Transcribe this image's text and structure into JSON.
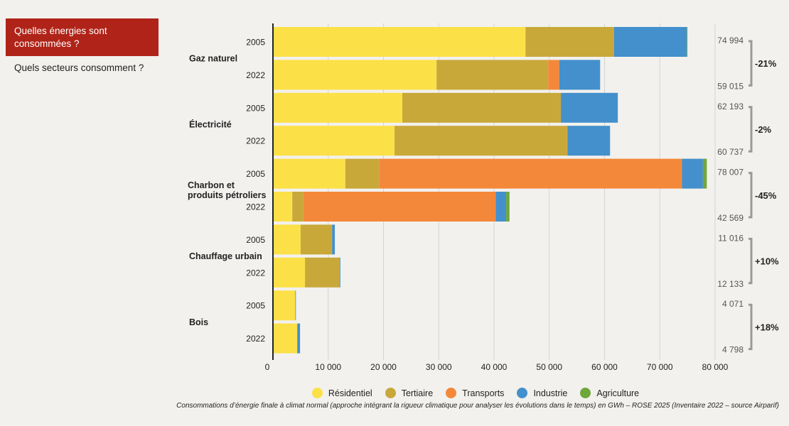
{
  "nav": {
    "tabs": [
      {
        "label": "Quelles énergies sont consommées ?"
      },
      {
        "label": "Quels secteurs consomment ?"
      }
    ]
  },
  "chart_data": {
    "type": "bar",
    "orientation": "horizontal",
    "stacked": true,
    "xlim": [
      0,
      80000
    ],
    "x_ticks": [
      {
        "value": 0,
        "label": "0"
      },
      {
        "value": 10000,
        "label": "10 000"
      },
      {
        "value": 20000,
        "label": "20 000"
      },
      {
        "value": 30000,
        "label": "30 000"
      },
      {
        "value": 40000,
        "label": "40 000"
      },
      {
        "value": 50000,
        "label": "50 000"
      },
      {
        "value": 60000,
        "label": "60 000"
      },
      {
        "value": 70000,
        "label": "70 000"
      },
      {
        "value": 80000,
        "label": "80 000"
      }
    ],
    "grid": true,
    "legend_position": "bottom",
    "series": [
      {
        "name": "Résidentiel",
        "color": "#fce047"
      },
      {
        "name": "Tertiaire",
        "color": "#c9a83a"
      },
      {
        "name": "Transports",
        "color": "#f4883a"
      },
      {
        "name": "Industrie",
        "color": "#4390cc"
      },
      {
        "name": "Agriculture",
        "color": "#6fa73a"
      }
    ],
    "groups": [
      {
        "label": "Gaz naturel",
        "bars": [
          {
            "year": "2005",
            "values": [
              45700,
              16000,
              0,
              13200,
              100
            ]
          },
          {
            "year": "2022",
            "values": [
              29600,
              20200,
              2000,
              7400,
              0
            ]
          }
        ],
        "totals": [
          "74 994",
          "59 015"
        ],
        "change": "-21%"
      },
      {
        "label": "Électricité",
        "bars": [
          {
            "year": "2005",
            "values": [
              23400,
              28700,
              0,
              10300,
              0
            ]
          },
          {
            "year": "2022",
            "values": [
              22000,
              31300,
              0,
              7700,
              0
            ]
          }
        ],
        "totals": [
          "62 193",
          "60 737"
        ],
        "change": "-2%"
      },
      {
        "label": "Charbon et produits pétroliers",
        "bars": [
          {
            "year": "2005",
            "values": [
              13100,
              6100,
              54800,
              3800,
              700
            ]
          },
          {
            "year": "2022",
            "values": [
              3500,
              2000,
              34800,
              1900,
              600
            ]
          }
        ],
        "totals": [
          "78 007",
          "42 569"
        ],
        "change": "-45%"
      },
      {
        "label": "Chauffage urbain",
        "bars": [
          {
            "year": "2005",
            "values": [
              5000,
              5700,
              0,
              500,
              0
            ]
          },
          {
            "year": "2022",
            "values": [
              5800,
              6300,
              0,
              100,
              0
            ]
          }
        ],
        "totals": [
          "11 016",
          "12 133"
        ],
        "change": "+10%"
      },
      {
        "label": "Bois",
        "bars": [
          {
            "year": "2005",
            "values": [
              4050,
              0,
              0,
              100,
              0
            ]
          },
          {
            "year": "2022",
            "values": [
              4400,
              0,
              0,
              500,
              0
            ]
          }
        ],
        "totals": [
          "4 071",
          "4 798"
        ],
        "change": "+18%"
      }
    ],
    "caption": "Consommations d’énergie finale à climat normal (approche intégrant la rigueur climatique pour analyser les évolutions dans le temps) en GWh – ROSE 2025 (Inventaire 2022 – source Airparif)"
  }
}
